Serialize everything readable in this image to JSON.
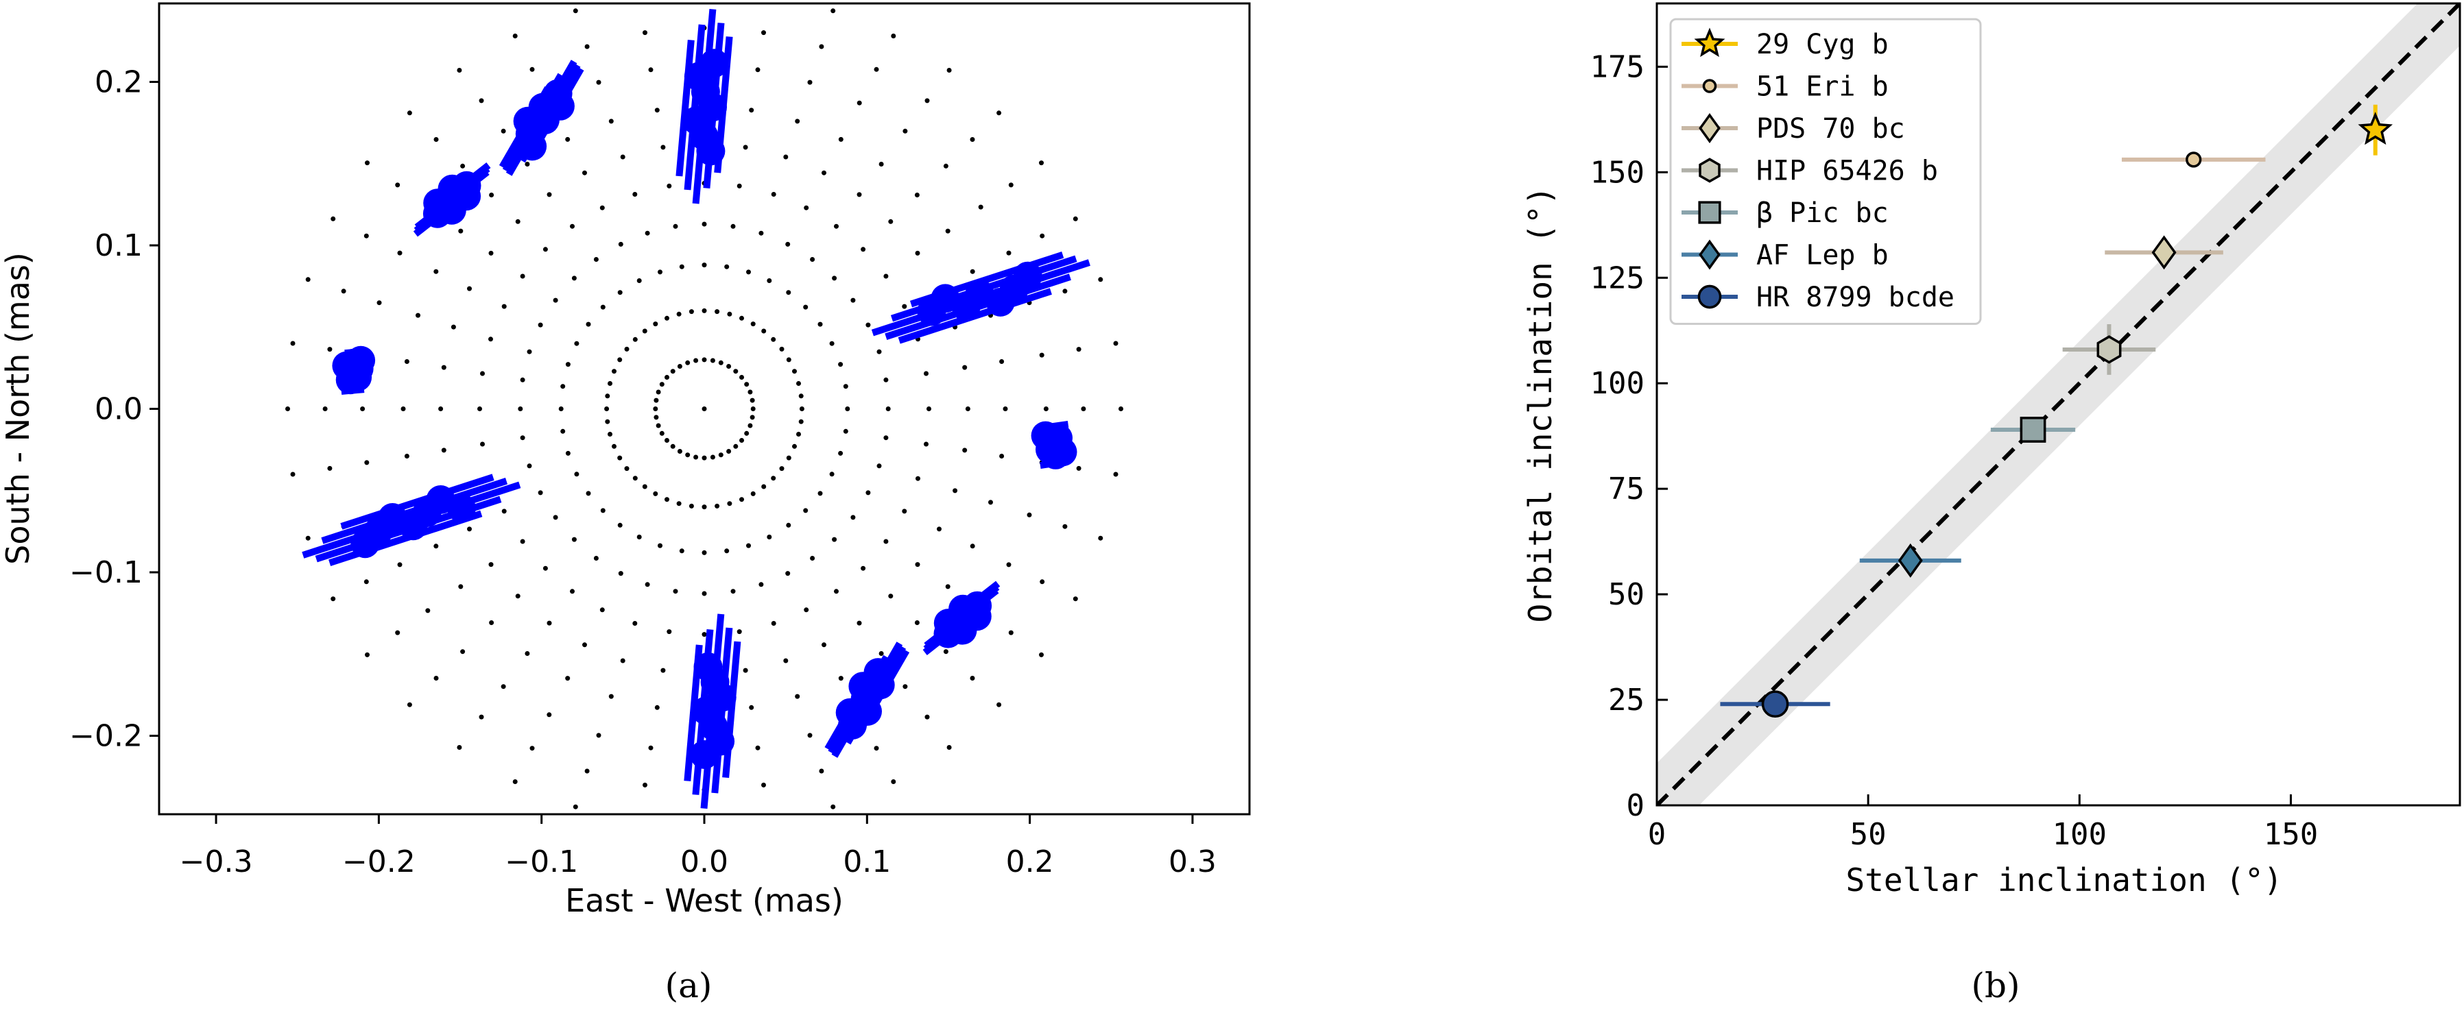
{
  "chart_data": [
    {
      "type": "scatter",
      "panel_caption": "(a)",
      "xlabel": "East - West (mas)",
      "ylabel": "South - North (mas)",
      "xlim": [
        -0.335,
        0.335
      ],
      "ylim": [
        -0.248,
        0.248
      ],
      "xticks": [
        "−0.3",
        "−0.2",
        "−0.1",
        "0.0",
        "0.1",
        "0.2",
        "0.3"
      ],
      "xtick_values": [
        -0.3,
        -0.2,
        -0.1,
        0.0,
        0.1,
        0.2,
        0.3
      ],
      "yticks": [
        "−0.2",
        "−0.1",
        "0.0",
        "0.1",
        "0.2"
      ],
      "ytick_values": [
        -0.2,
        -0.1,
        0.0,
        0.1,
        0.2
      ],
      "grid": false,
      "uv_grid": {
        "center": [
          0.0,
          0.0
        ],
        "ring_radii": [
          0.03,
          0.06,
          0.088,
          0.113,
          0.138,
          0.162,
          0.185,
          0.21,
          0.233,
          0.256
        ],
        "color": "#000000"
      },
      "blue_color": "#0000ff",
      "blue_clusters": [
        {
          "x": 0.0,
          "y": 0.185,
          "angle": 85,
          "len": 0.12
        },
        {
          "x": -0.1,
          "y": 0.178,
          "angle": 60,
          "len": 0.08
        },
        {
          "x": -0.155,
          "y": 0.128,
          "angle": 38,
          "len": 0.055
        },
        {
          "x": 0.17,
          "y": 0.068,
          "angle": 18,
          "len": 0.14
        },
        {
          "x": -0.215,
          "y": 0.023,
          "angle": 5,
          "len": 0.02
        },
        {
          "x": 0.215,
          "y": -0.022,
          "angle": 8,
          "len": 0.02
        },
        {
          "x": -0.18,
          "y": -0.068,
          "angle": 18,
          "len": 0.14
        },
        {
          "x": 0.158,
          "y": -0.128,
          "angle": 38,
          "len": 0.055
        },
        {
          "x": 0.1,
          "y": -0.178,
          "angle": 60,
          "len": 0.08
        },
        {
          "x": 0.005,
          "y": -0.185,
          "angle": 85,
          "len": 0.12
        }
      ]
    },
    {
      "type": "scatter",
      "panel_caption": "(b)",
      "xlabel": "Stellar inclination (°)",
      "ylabel": "Orbital inclination (°)",
      "xlim": [
        0,
        190
      ],
      "ylim": [
        0,
        190
      ],
      "xticks": [
        "0",
        "50",
        "100",
        "150"
      ],
      "xtick_values": [
        0,
        50,
        100,
        150
      ],
      "yticks": [
        "0",
        "25",
        "50",
        "75",
        "100",
        "125",
        "150",
        "175"
      ],
      "ytick_values": [
        0,
        25,
        50,
        75,
        100,
        125,
        150,
        175
      ],
      "grid": false,
      "legend_placement": "top-left",
      "one_to_one_line": {
        "style": "dashed",
        "color": "#000000"
      },
      "band": {
        "half_width": 10,
        "color": "#e5e5e5"
      },
      "series": [
        {
          "name": "29 Cyg b",
          "x": 170,
          "y": 160,
          "xerr": 0,
          "yerr": 6,
          "marker": "star",
          "color": "#f5c400",
          "err_color": "#f5c400"
        },
        {
          "name": "51 Eri b",
          "x": 127,
          "y": 153,
          "xerr": 17,
          "yerr": 1,
          "marker": "small-circle",
          "color": "#e3c99a",
          "err_color": "#d4bca6"
        },
        {
          "name": "PDS 70 bc",
          "x": 120,
          "y": 131,
          "xerr": 14,
          "yerr": 3,
          "marker": "diamond",
          "color": "#d7cfae",
          "err_color": "#c8b8a5"
        },
        {
          "name": "HIP 65426 b",
          "x": 107,
          "y": 108,
          "xerr": 11,
          "yerr": 6,
          "marker": "hexagon",
          "color": "#c9c9b9",
          "err_color": "#b0b0a8"
        },
        {
          "name": "β Pic bc",
          "x": 89,
          "y": 89,
          "xerr": 10,
          "yerr": 0,
          "marker": "square",
          "color": "#92a5a5",
          "err_color": "#8aa4ac"
        },
        {
          "name": "AF Lep b",
          "x": 60,
          "y": 58,
          "xerr": 12,
          "yerr": 0,
          "marker": "diamond",
          "color": "#3e7a9a",
          "err_color": "#4a7fa5"
        },
        {
          "name": "HR 8799 bcde",
          "x": 28,
          "y": 24,
          "xerr": 13,
          "yerr": 0,
          "marker": "circle",
          "color": "#2a4f8f",
          "err_color": "#2d5596"
        }
      ]
    }
  ]
}
